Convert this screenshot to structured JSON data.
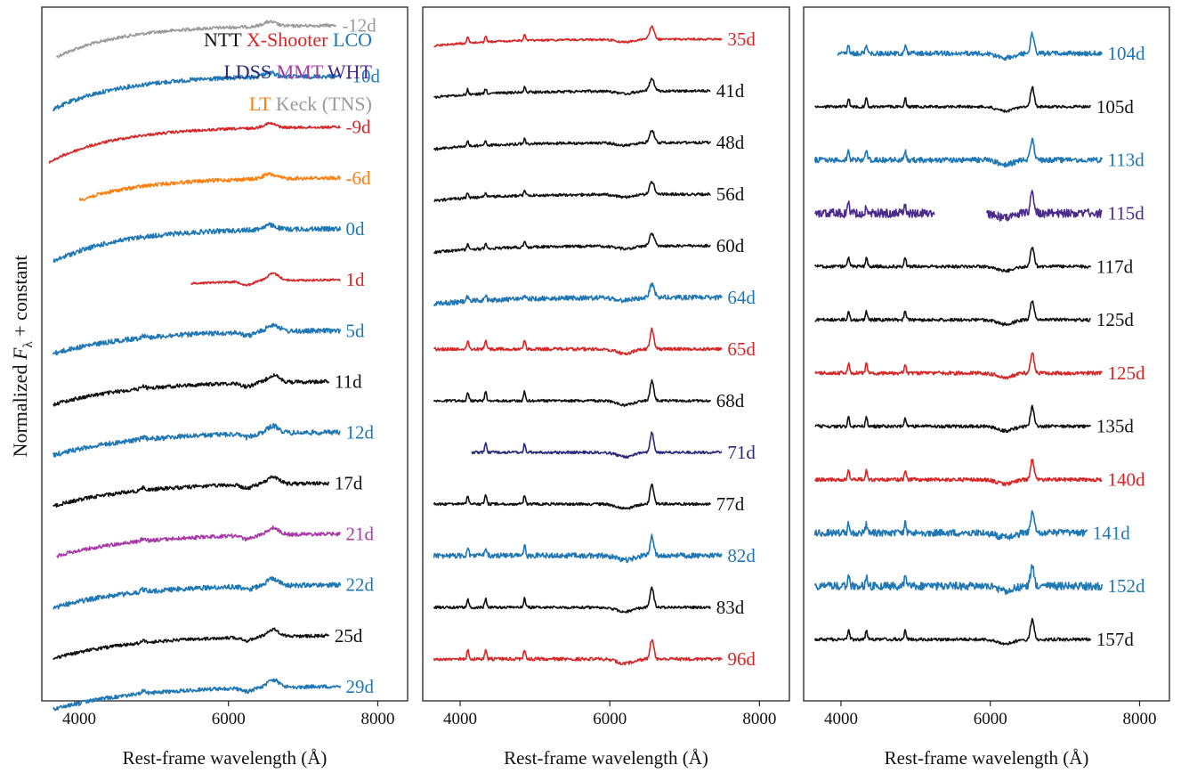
{
  "figure": {
    "ylabel_prefix": "Normalized ",
    "ylabel_F": "F",
    "ylabel_sub": "λ",
    "ylabel_suffix": " + constant"
  },
  "legend": {
    "rows": [
      [
        {
          "label": "NTT",
          "color": "#111111"
        },
        {
          "label": "X-Shooter",
          "color": "#d62728"
        },
        {
          "label": "LCO",
          "color": "#1f77b4"
        }
      ],
      [
        {
          "label": "LDSS",
          "color": "#2a2a7a"
        },
        {
          "label": "MMT",
          "color": "#a83aa8"
        },
        {
          "label": "WHT",
          "color": "#4b2a8c"
        }
      ],
      [
        {
          "label": "LT",
          "color": "#ff7f0e"
        },
        {
          "label": "Keck (TNS)",
          "color": "#9a9a9a"
        }
      ]
    ]
  },
  "chart_data": [
    {
      "type": "line",
      "panel": "left",
      "xlabel": "Rest-frame wavelength (Å)",
      "ylabel": "Normalized Fλ + constant",
      "xlim": [
        3500,
        8400
      ],
      "xticks": [
        4000,
        6000,
        8000
      ],
      "grid": false,
      "legend_position": "top-right",
      "series": [
        {
          "label": "-12d",
          "instrument": "Keck (TNS)",
          "color": "#9a9a9a",
          "x_range": [
            3700,
            7450
          ],
          "profile": "blue",
          "noise": 0.6
        },
        {
          "label": "-10d",
          "instrument": "LCO",
          "color": "#1f77b4",
          "x_range": [
            3650,
            7500
          ],
          "profile": "blue",
          "noise": 0.8
        },
        {
          "label": "-9d",
          "instrument": "X-Shooter",
          "color": "#d62728",
          "x_range": [
            3600,
            7500
          ],
          "profile": "blue",
          "noise": 0.5
        },
        {
          "label": "-6d",
          "instrument": "LT",
          "color": "#ff7f0e",
          "x_range": [
            4000,
            7500
          ],
          "profile": "blue",
          "noise": 0.7
        },
        {
          "label": "0d",
          "instrument": "LCO",
          "color": "#1f77b4",
          "x_range": [
            3650,
            7500
          ],
          "profile": "blue",
          "noise": 0.9
        },
        {
          "label": "1d",
          "instrument": "X-Shooter",
          "color": "#d62728",
          "x_range": [
            5500,
            7500
          ],
          "profile": "early",
          "noise": 0.4
        },
        {
          "label": "5d",
          "instrument": "LCO",
          "color": "#1f77b4",
          "x_range": [
            3650,
            7500
          ],
          "profile": "early",
          "noise": 0.9
        },
        {
          "label": "11d",
          "instrument": "NTT",
          "color": "#111111",
          "x_range": [
            3650,
            7350
          ],
          "profile": "early",
          "noise": 0.7
        },
        {
          "label": "12d",
          "instrument": "LCO",
          "color": "#1f77b4",
          "x_range": [
            3650,
            7500
          ],
          "profile": "early",
          "noise": 0.9
        },
        {
          "label": "17d",
          "instrument": "NTT",
          "color": "#111111",
          "x_range": [
            3650,
            7350
          ],
          "profile": "early",
          "noise": 0.7
        },
        {
          "label": "21d",
          "instrument": "MMT",
          "color": "#a83aa8",
          "x_range": [
            3700,
            7500
          ],
          "profile": "early",
          "noise": 0.7
        },
        {
          "label": "22d",
          "instrument": "LCO",
          "color": "#1f77b4",
          "x_range": [
            3650,
            7500
          ],
          "profile": "early",
          "noise": 0.9
        },
        {
          "label": "25d",
          "instrument": "NTT",
          "color": "#111111",
          "x_range": [
            3650,
            7350
          ],
          "profile": "early",
          "noise": 0.6
        },
        {
          "label": "29d",
          "instrument": "LCO",
          "color": "#1f77b4",
          "x_range": [
            3650,
            7500
          ],
          "profile": "early",
          "noise": 0.7
        }
      ]
    },
    {
      "type": "line",
      "panel": "middle",
      "xlabel": "Rest-frame wavelength (Å)",
      "xlim": [
        3500,
        8400
      ],
      "xticks": [
        4000,
        6000,
        8000
      ],
      "grid": false,
      "series": [
        {
          "label": "35d",
          "instrument": "X-Shooter",
          "color": "#d62728",
          "x_range": [
            3650,
            7500
          ],
          "profile": "mid",
          "noise": 0.4
        },
        {
          "label": "41d",
          "instrument": "NTT",
          "color": "#111111",
          "x_range": [
            3650,
            7350
          ],
          "profile": "mid",
          "noise": 0.5
        },
        {
          "label": "48d",
          "instrument": "NTT",
          "color": "#111111",
          "x_range": [
            3650,
            7350
          ],
          "profile": "mid",
          "noise": 0.5
        },
        {
          "label": "56d",
          "instrument": "NTT",
          "color": "#111111",
          "x_range": [
            3650,
            7350
          ],
          "profile": "mid",
          "noise": 0.5
        },
        {
          "label": "60d",
          "instrument": "NTT",
          "color": "#111111",
          "x_range": [
            3650,
            7350
          ],
          "profile": "mid",
          "noise": 0.5
        },
        {
          "label": "64d",
          "instrument": "LCO",
          "color": "#1f77b4",
          "x_range": [
            3650,
            7500
          ],
          "profile": "mid",
          "noise": 0.9
        },
        {
          "label": "65d",
          "instrument": "X-Shooter",
          "color": "#d62728",
          "x_range": [
            3650,
            7500
          ],
          "profile": "late",
          "noise": 0.6
        },
        {
          "label": "68d",
          "instrument": "NTT",
          "color": "#111111",
          "x_range": [
            3650,
            7350
          ],
          "profile": "late",
          "noise": 0.5
        },
        {
          "label": "71d",
          "instrument": "LDSS",
          "color": "#2a2a7a",
          "x_range": [
            4150,
            7500
          ],
          "profile": "late",
          "noise": 0.5
        },
        {
          "label": "77d",
          "instrument": "NTT",
          "color": "#111111",
          "x_range": [
            3650,
            7350
          ],
          "profile": "late",
          "noise": 0.5
        },
        {
          "label": "82d",
          "instrument": "LCO",
          "color": "#1f77b4",
          "x_range": [
            3650,
            7500
          ],
          "profile": "late",
          "noise": 1.0
        },
        {
          "label": "83d",
          "instrument": "NTT",
          "color": "#111111",
          "x_range": [
            3650,
            7350
          ],
          "profile": "late",
          "noise": 0.5
        },
        {
          "label": "96d",
          "instrument": "X-Shooter",
          "color": "#d62728",
          "x_range": [
            3650,
            7500
          ],
          "profile": "late",
          "noise": 0.6
        }
      ]
    },
    {
      "type": "line",
      "panel": "right",
      "xlabel": "Rest-frame wavelength (Å)",
      "xlim": [
        3500,
        8400
      ],
      "xticks": [
        4000,
        6000,
        8000
      ],
      "grid": false,
      "series": [
        {
          "label": "104d",
          "instrument": "LCO",
          "color": "#1f77b4",
          "x_range": [
            3950,
            7500
          ],
          "profile": "late",
          "noise": 0.9
        },
        {
          "label": "105d",
          "instrument": "NTT",
          "color": "#111111",
          "x_range": [
            3650,
            7350
          ],
          "profile": "late",
          "noise": 0.5
        },
        {
          "label": "113d",
          "instrument": "LCO",
          "color": "#1f77b4",
          "x_range": [
            3650,
            7500
          ],
          "profile": "late",
          "noise": 1.0
        },
        {
          "label": "115d",
          "instrument": "WHT",
          "color": "#4b2a8c",
          "x_range": [
            3650,
            7500
          ],
          "gap": [
            5250,
            5950
          ],
          "profile": "late",
          "noise": 1.6
        },
        {
          "label": "117d",
          "instrument": "NTT",
          "color": "#111111",
          "x_range": [
            3650,
            7350
          ],
          "profile": "late",
          "noise": 0.6
        },
        {
          "label": "125d",
          "instrument": "NTT",
          "color": "#111111",
          "x_range": [
            3650,
            7350
          ],
          "profile": "late",
          "noise": 0.6
        },
        {
          "label": "125d",
          "instrument": "X-Shooter",
          "color": "#d62728",
          "x_range": [
            3650,
            7500
          ],
          "profile": "late",
          "noise": 0.7
        },
        {
          "label": "135d",
          "instrument": "NTT",
          "color": "#111111",
          "x_range": [
            3650,
            7350
          ],
          "profile": "late",
          "noise": 0.6
        },
        {
          "label": "140d",
          "instrument": "X-Shooter",
          "color": "#d62728",
          "x_range": [
            3650,
            7500
          ],
          "profile": "late",
          "noise": 0.7
        },
        {
          "label": "141d",
          "instrument": "LCO",
          "color": "#1f77b4",
          "x_range": [
            3650,
            7300
          ],
          "profile": "late",
          "noise": 1.3
        },
        {
          "label": "152d",
          "instrument": "LCO",
          "color": "#1f77b4",
          "x_range": [
            3650,
            7500
          ],
          "profile": "late",
          "noise": 1.5
        },
        {
          "label": "157d",
          "instrument": "NTT",
          "color": "#111111",
          "x_range": [
            3650,
            7350
          ],
          "profile": "late",
          "noise": 0.6
        }
      ]
    }
  ]
}
